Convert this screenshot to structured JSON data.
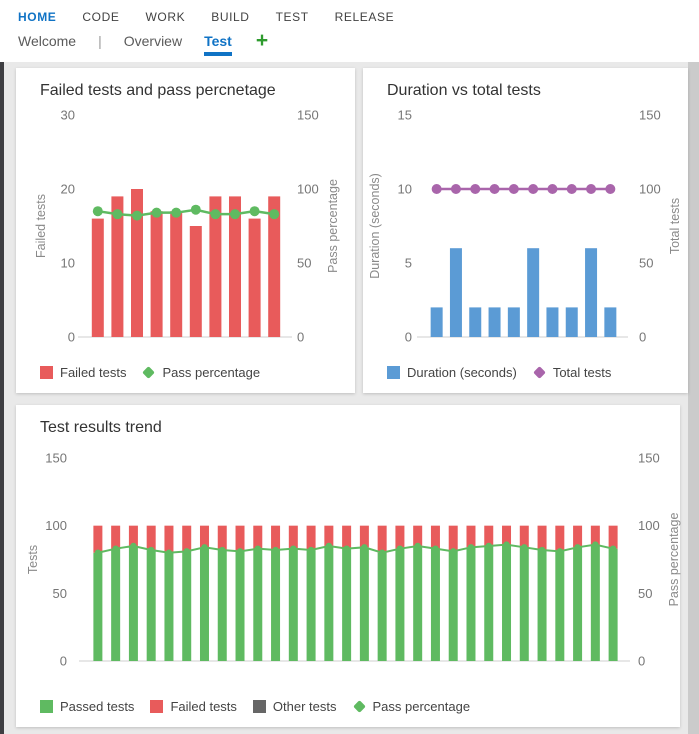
{
  "nav": {
    "top": [
      {
        "label": "HOME",
        "active": true
      },
      {
        "label": "CODE",
        "active": false
      },
      {
        "label": "WORK",
        "active": false
      },
      {
        "label": "BUILD",
        "active": false
      },
      {
        "label": "TEST",
        "active": false
      },
      {
        "label": "RELEASE",
        "active": false
      }
    ],
    "tabs": [
      {
        "label": "Welcome",
        "active": false
      },
      {
        "label": "Overview",
        "active": false
      },
      {
        "label": "Test",
        "active": true
      }
    ],
    "separator": "|",
    "add_tab_icon": "+"
  },
  "colors": {
    "accent_blue": "#1073c5",
    "add_tab_green": "#2e9b2e",
    "page_background": "#e9e9e9",
    "bar_red": "#e85b5b",
    "line_green": "#5fba61",
    "bar_green": "#5fba61",
    "bar_blue": "#5b9bd5",
    "line_purple": "#a965ab",
    "bar_gray": "#666666"
  },
  "chart_data": [
    {
      "type": "bar",
      "title": "Failed tests and pass percnetage",
      "left_axis": {
        "label": "Failed tests",
        "ticks": [
          30,
          20,
          10,
          0
        ],
        "max": 30
      },
      "right_axis": {
        "label": "Pass percentage",
        "ticks": [
          150,
          100,
          50,
          0
        ],
        "max": 150
      },
      "grid": false,
      "legend_position": "bottom",
      "series": [
        {
          "name": "Failed tests",
          "type": "bar",
          "axis": "left",
          "color": "#e85b5b",
          "values": [
            16,
            19,
            20,
            17,
            17,
            15,
            19,
            19,
            16,
            19
          ]
        },
        {
          "name": "Pass percentage",
          "type": "line",
          "axis": "right",
          "color": "#5fba61",
          "values": [
            85,
            83,
            82,
            84,
            84,
            86,
            83,
            83,
            85,
            83
          ]
        }
      ]
    },
    {
      "type": "bar",
      "title": "Duration vs total tests",
      "left_axis": {
        "label": "Duration (seconds)",
        "ticks": [
          15,
          10,
          5,
          0
        ],
        "max": 15
      },
      "right_axis": {
        "label": "Total tests",
        "ticks": [
          150,
          100,
          50,
          0
        ],
        "max": 150
      },
      "grid": false,
      "legend_position": "bottom",
      "series": [
        {
          "name": "Duration (seconds)",
          "type": "bar",
          "axis": "left",
          "color": "#5b9bd5",
          "values": [
            2,
            6,
            2,
            2,
            2,
            6,
            2,
            2,
            6,
            2
          ]
        },
        {
          "name": "Total tests",
          "type": "line",
          "axis": "right",
          "color": "#a965ab",
          "values": [
            100,
            100,
            100,
            100,
            100,
            100,
            100,
            100,
            100,
            100
          ]
        }
      ]
    },
    {
      "type": "bar",
      "title": "Test results trend",
      "left_axis": {
        "label": "Tests",
        "ticks": [
          150,
          100,
          50,
          0
        ],
        "max": 150
      },
      "right_axis": {
        "label": "Pass percentage",
        "ticks": [
          150,
          100,
          50,
          0
        ],
        "max": 150
      },
      "grid": false,
      "legend_position": "bottom",
      "stacked": true,
      "series": [
        {
          "name": "Passed tests",
          "type": "bar",
          "axis": "left",
          "color": "#5fba61",
          "values": [
            80,
            83,
            85,
            82,
            80,
            81,
            84,
            82,
            81,
            83,
            82,
            83,
            82,
            85,
            83,
            84,
            80,
            83,
            85,
            83,
            81,
            84,
            85,
            86,
            84,
            82,
            81,
            84,
            86,
            83
          ]
        },
        {
          "name": "Failed tests",
          "type": "bar",
          "axis": "left",
          "color": "#e85b5b",
          "values": [
            20,
            17,
            15,
            18,
            20,
            19,
            16,
            18,
            19,
            17,
            18,
            17,
            18,
            15,
            17,
            16,
            20,
            17,
            15,
            17,
            19,
            16,
            15,
            14,
            16,
            18,
            19,
            16,
            14,
            17
          ]
        },
        {
          "name": "Other tests",
          "type": "bar",
          "axis": "left",
          "color": "#666666",
          "values": [
            0,
            0,
            0,
            0,
            0,
            0,
            0,
            0,
            0,
            0,
            0,
            0,
            0,
            0,
            0,
            0,
            0,
            0,
            0,
            0,
            0,
            0,
            0,
            0,
            0,
            0,
            0,
            0,
            0,
            0
          ]
        },
        {
          "name": "Pass percentage",
          "type": "line",
          "axis": "right",
          "color": "#5fba61",
          "values": [
            80,
            83,
            85,
            82,
            80,
            81,
            84,
            82,
            81,
            83,
            82,
            83,
            82,
            85,
            83,
            84,
            80,
            83,
            85,
            83,
            81,
            84,
            85,
            86,
            84,
            82,
            81,
            84,
            86,
            83
          ]
        }
      ]
    }
  ]
}
